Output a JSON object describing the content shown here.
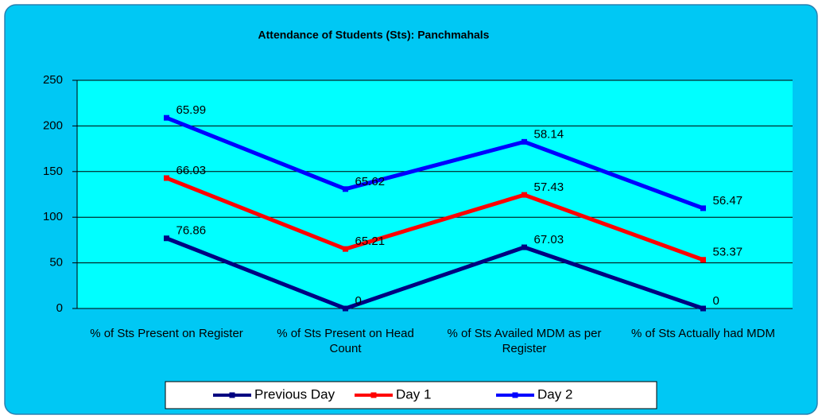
{
  "chart_data": {
    "type": "line",
    "stacked": true,
    "title": "Attendance of Students (Sts): Panchmahals",
    "categories": [
      "% of Sts Present on Register",
      "% of Sts Present on Head Count",
      "% of Sts Availed MDM as per Register",
      "% of Sts Actually had MDM"
    ],
    "series": [
      {
        "name": "Previous Day",
        "color": "#000080",
        "values": [
          76.86,
          0,
          67.03,
          0
        ]
      },
      {
        "name": "Day 1",
        "color": "#ff0000",
        "values": [
          66.03,
          65.21,
          57.43,
          53.37
        ]
      },
      {
        "name": "Day 2",
        "color": "#0000ff",
        "values": [
          65.99,
          65.62,
          58.14,
          56.47
        ]
      }
    ],
    "ylim": [
      0,
      250
    ],
    "yticks": [
      0,
      50,
      100,
      150,
      200,
      250
    ],
    "grid": true,
    "legend": "bottom"
  }
}
